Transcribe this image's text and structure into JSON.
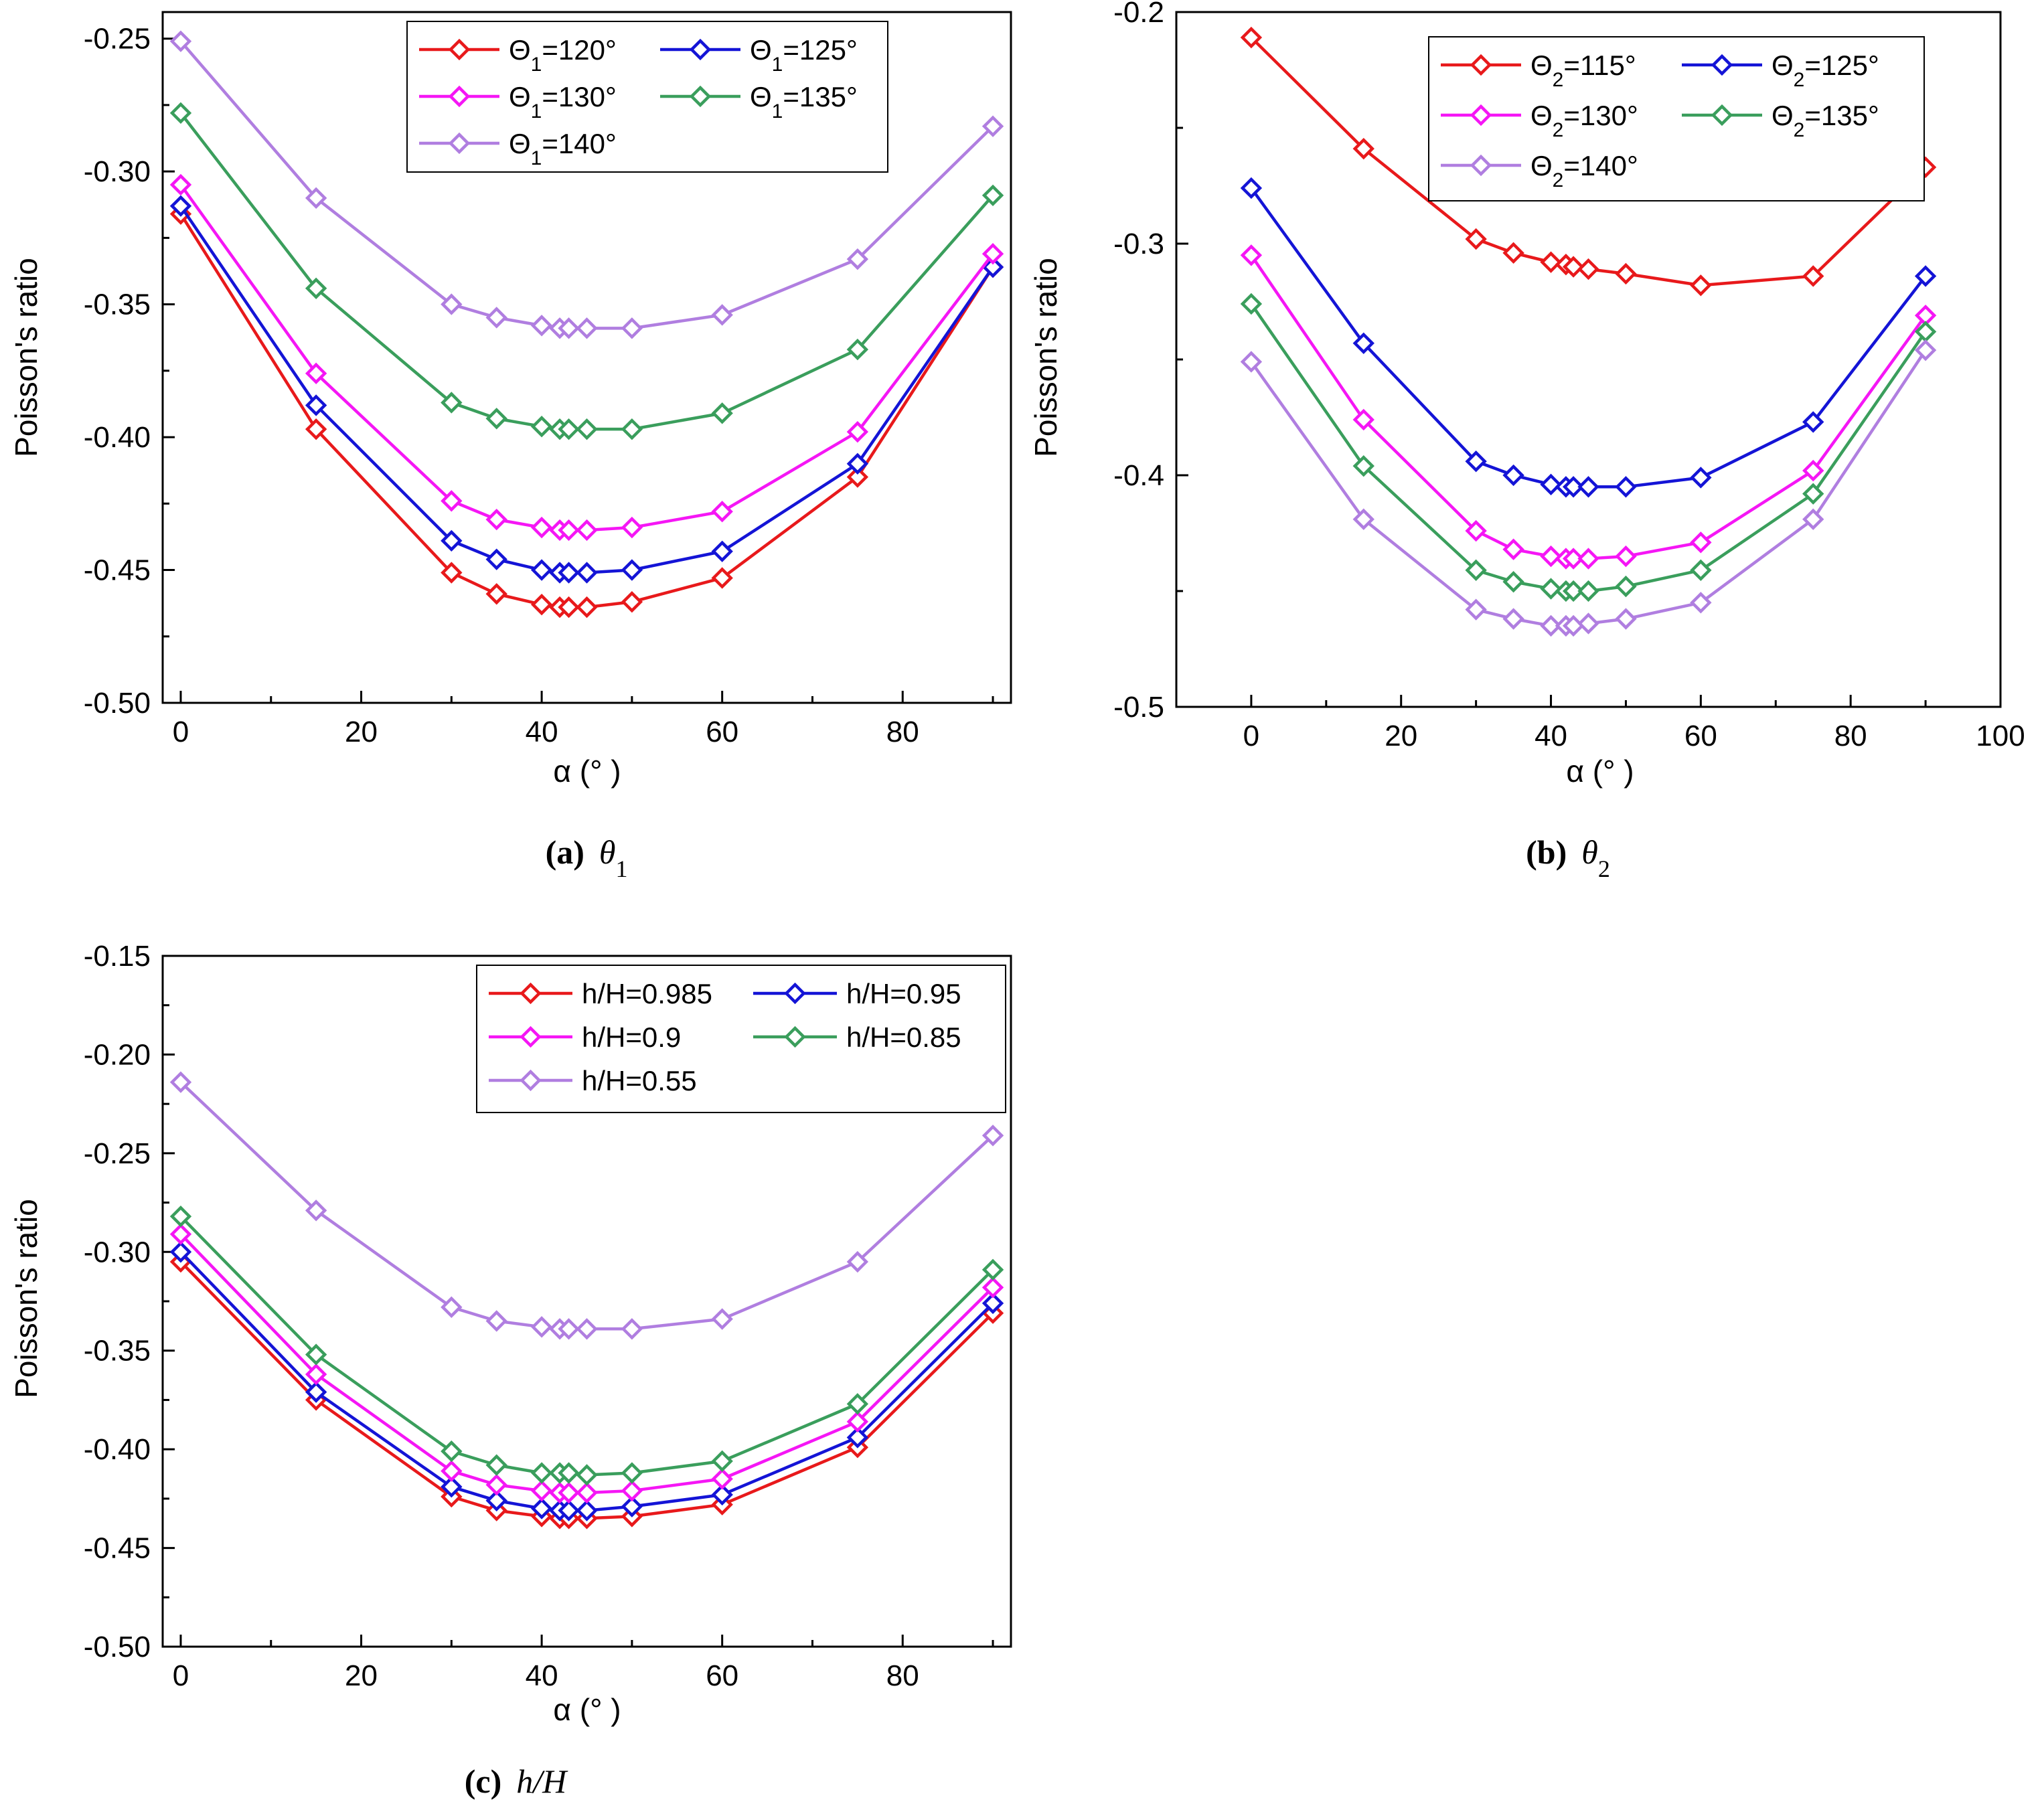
{
  "colors": {
    "series1": "#e8191b",
    "series2": "#1414d6",
    "series3": "#f516f5",
    "series4": "#3a9e5c",
    "series5": "#b07ee0",
    "axis": "#000000"
  },
  "chart_data": [
    {
      "type": "line",
      "title": "",
      "xlabel": "α (°  )",
      "ylabel": "Poisson's ratio",
      "xlim": [
        -2,
        92
      ],
      "ylim": [
        -0.5,
        -0.24
      ],
      "xticks": [
        0,
        20,
        40,
        60,
        80
      ],
      "xtick_labels": [
        "0",
        "20",
        "40",
        "60",
        "80"
      ],
      "yticks": [
        -0.5,
        -0.45,
        -0.4,
        -0.35,
        -0.3,
        -0.25
      ],
      "ytick_labels": [
        "-0.50",
        "-0.45",
        "-0.40",
        "-0.35",
        "-0.30",
        "-0.25"
      ],
      "x": [
        0,
        15,
        30,
        35,
        40,
        42,
        43,
        45,
        50,
        60,
        75,
        90
      ],
      "legend_position": "top-right",
      "caption_label": "(a)",
      "caption_math": "θ",
      "caption_sub": "1",
      "series": [
        {
          "name_main": "Θ",
          "name_sub": "1",
          "name_rest": "=120°",
          "color_key": "series1",
          "values": [
            -0.316,
            -0.397,
            -0.451,
            -0.459,
            -0.463,
            -0.464,
            -0.464,
            -0.464,
            -0.462,
            -0.453,
            -0.415,
            -0.336
          ]
        },
        {
          "name_main": "Θ",
          "name_sub": "1",
          "name_rest": "=125°",
          "color_key": "series2",
          "values": [
            -0.313,
            -0.388,
            -0.439,
            -0.446,
            -0.45,
            -0.451,
            -0.451,
            -0.451,
            -0.45,
            -0.443,
            -0.41,
            -0.336
          ]
        },
        {
          "name_main": "Θ",
          "name_sub": "1",
          "name_rest": "=130°",
          "color_key": "series3",
          "values": [
            -0.305,
            -0.376,
            -0.424,
            -0.431,
            -0.434,
            -0.435,
            -0.435,
            -0.435,
            -0.434,
            -0.428,
            -0.398,
            -0.331
          ]
        },
        {
          "name_main": "Θ",
          "name_sub": "1",
          "name_rest": "=135°",
          "color_key": "series4",
          "values": [
            -0.278,
            -0.344,
            -0.387,
            -0.393,
            -0.396,
            -0.397,
            -0.397,
            -0.397,
            -0.397,
            -0.391,
            -0.367,
            -0.309
          ]
        },
        {
          "name_main": "Θ",
          "name_sub": "1",
          "name_rest": "=140°",
          "color_key": "series5",
          "values": [
            -0.251,
            -0.31,
            -0.35,
            -0.355,
            -0.358,
            -0.359,
            -0.359,
            -0.359,
            -0.359,
            -0.354,
            -0.333,
            -0.283
          ]
        }
      ]
    },
    {
      "type": "line",
      "title": "",
      "xlabel": "α (°  )",
      "ylabel": "Poisson's ratio",
      "xlim": [
        -10,
        100
      ],
      "ylim": [
        -0.5,
        -0.2
      ],
      "xticks": [
        0,
        20,
        40,
        60,
        80,
        100
      ],
      "xtick_labels": [
        "0",
        "20",
        "40",
        "60",
        "80",
        "100"
      ],
      "yticks": [
        -0.5,
        -0.4,
        -0.3,
        -0.2
      ],
      "ytick_labels": [
        "-0.5",
        "-0.4",
        "-0.3",
        "-0.2"
      ],
      "x": [
        0,
        15,
        30,
        35,
        40,
        42,
        43,
        45,
        50,
        60,
        75,
        90
      ],
      "legend_position": "top-right",
      "caption_label": "(b)",
      "caption_math": "θ",
      "caption_sub": "2",
      "series": [
        {
          "name_main": "Θ",
          "name_sub": "2",
          "name_rest": "=115°",
          "color_key": "series1",
          "values": [
            -0.211,
            -0.259,
            -0.298,
            -0.304,
            -0.308,
            -0.309,
            -0.31,
            -0.311,
            -0.313,
            -0.318,
            -0.314,
            -0.267
          ]
        },
        {
          "name_main": "Θ",
          "name_sub": "2",
          "name_rest": "=125°",
          "color_key": "series2",
          "values": [
            -0.276,
            -0.343,
            -0.394,
            -0.4,
            -0.404,
            -0.405,
            -0.405,
            -0.405,
            -0.405,
            -0.401,
            -0.377,
            -0.314
          ]
        },
        {
          "name_main": "Θ",
          "name_sub": "2",
          "name_rest": "=130°",
          "color_key": "series3",
          "values": [
            -0.305,
            -0.376,
            -0.424,
            -0.432,
            -0.435,
            -0.436,
            -0.436,
            -0.436,
            -0.435,
            -0.429,
            -0.398,
            -0.331
          ]
        },
        {
          "name_main": "Θ",
          "name_sub": "2",
          "name_rest": "=135°",
          "color_key": "series4",
          "values": [
            -0.326,
            -0.396,
            -0.441,
            -0.446,
            -0.449,
            -0.45,
            -0.45,
            -0.45,
            -0.448,
            -0.441,
            -0.408,
            -0.338
          ]
        },
        {
          "name_main": "Θ",
          "name_sub": "2",
          "name_rest": "=140°",
          "color_key": "series5",
          "values": [
            -0.351,
            -0.419,
            -0.458,
            -0.462,
            -0.465,
            -0.465,
            -0.465,
            -0.464,
            -0.462,
            -0.455,
            -0.419,
            -0.346
          ]
        }
      ]
    },
    {
      "type": "line",
      "title": "",
      "xlabel": "α (°  )",
      "ylabel": "Poisson's ratio",
      "xlim": [
        -2,
        92
      ],
      "ylim": [
        -0.5,
        -0.15
      ],
      "xticks": [
        0,
        20,
        40,
        60,
        80
      ],
      "xtick_labels": [
        "0",
        "20",
        "40",
        "60",
        "80"
      ],
      "yticks": [
        -0.5,
        -0.45,
        -0.4,
        -0.35,
        -0.3,
        -0.25,
        -0.2,
        -0.15
      ],
      "ytick_labels": [
        "-0.50",
        "-0.45",
        "-0.40",
        "-0.35",
        "-0.30",
        "-0.25",
        "-0.20",
        "-0.15"
      ],
      "x": [
        0,
        15,
        30,
        35,
        40,
        42,
        43,
        45,
        50,
        60,
        75,
        90
      ],
      "legend_position": "top-right",
      "caption_label": "(c)",
      "caption_math": "h/H",
      "caption_sub": "",
      "series": [
        {
          "name_main": "h/H=0.985",
          "name_sub": "",
          "name_rest": "",
          "color_key": "series1",
          "values": [
            -0.305,
            -0.375,
            -0.424,
            -0.431,
            -0.434,
            -0.435,
            -0.435,
            -0.435,
            -0.434,
            -0.428,
            -0.399,
            -0.331
          ]
        },
        {
          "name_main": "h/H=0.95",
          "name_sub": "",
          "name_rest": "",
          "color_key": "series2",
          "values": [
            -0.3,
            -0.371,
            -0.419,
            -0.426,
            -0.43,
            -0.431,
            -0.431,
            -0.431,
            -0.429,
            -0.423,
            -0.394,
            -0.326
          ]
        },
        {
          "name_main": "h/H=0.9",
          "name_sub": "",
          "name_rest": "",
          "color_key": "series3",
          "values": [
            -0.291,
            -0.362,
            -0.411,
            -0.418,
            -0.421,
            -0.422,
            -0.422,
            -0.422,
            -0.421,
            -0.415,
            -0.386,
            -0.318
          ]
        },
        {
          "name_main": "h/H=0.85",
          "name_sub": "",
          "name_rest": "",
          "color_key": "series4",
          "values": [
            -0.282,
            -0.352,
            -0.401,
            -0.408,
            -0.412,
            -0.412,
            -0.412,
            -0.413,
            -0.412,
            -0.406,
            -0.377,
            -0.309
          ]
        },
        {
          "name_main": "h/H=0.55",
          "name_sub": "",
          "name_rest": "",
          "color_key": "series5",
          "values": [
            -0.214,
            -0.279,
            -0.328,
            -0.335,
            -0.338,
            -0.339,
            -0.339,
            -0.339,
            -0.339,
            -0.334,
            -0.305,
            -0.241
          ]
        }
      ]
    }
  ]
}
